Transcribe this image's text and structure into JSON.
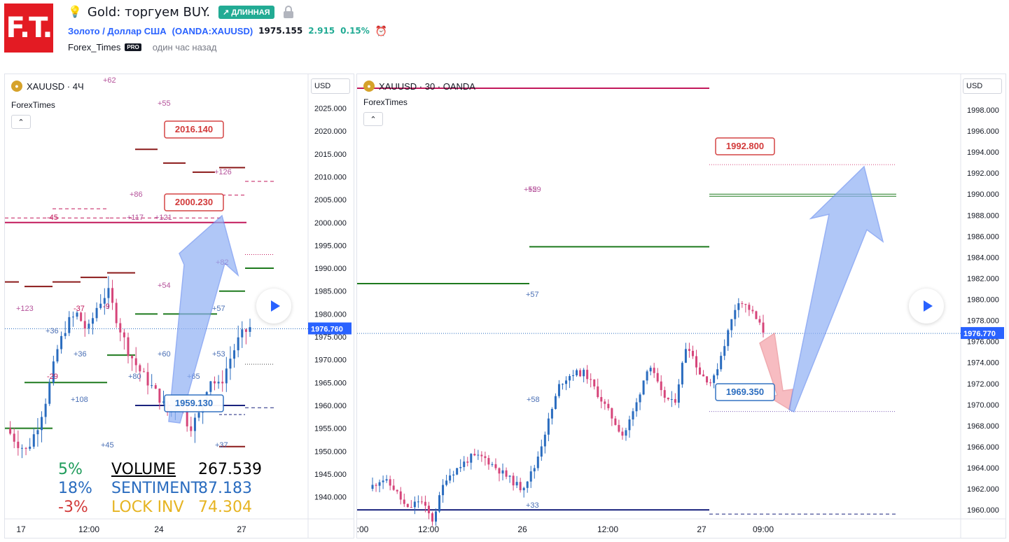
{
  "header": {
    "logo_text": "F.T.",
    "idea_title": "Gold: торгуем BUY.",
    "direction_badge": "↗ ДЛИННАЯ",
    "symbol_name": "Золото / Доллар США",
    "symbol_ticker": "(OANDA:XAUUSD)",
    "price": "1975.155",
    "change": "2.915",
    "change_pct": "0.15%",
    "author": "Forex_Times",
    "pro_badge": "PRO",
    "time_ago": "один час назад"
  },
  "left_chart": {
    "symbol": "XAUUSD · 4Ч",
    "indicator": "ForexTimes",
    "currency": "USD",
    "price_labels": [
      "2025.000",
      "2020.000",
      "2015.000",
      "2010.000",
      "2005.000",
      "2000.000",
      "1995.000",
      "1990.000",
      "1985.000",
      "1980.000",
      "1975.000",
      "1970.000",
      "1965.000",
      "1960.000",
      "1955.000",
      "1950.000",
      "1945.000",
      "1940.000"
    ],
    "current_price": "1976.760",
    "time_labels": [
      "17",
      "12:00",
      "24",
      "27"
    ],
    "callouts": [
      "2016.140",
      "2000.230",
      "1959.130"
    ],
    "annotations": [
      "+62",
      "+55",
      "+126",
      "+86",
      "+117",
      "+121",
      "-45",
      "+82",
      "+54",
      "+123",
      "-37",
      "-9",
      "+57",
      "+36",
      "+36",
      "+60",
      "+80",
      "-29",
      "+65",
      "+53",
      "+108",
      "+37",
      "+45"
    ],
    "stats": {
      "volume_pct": "5%",
      "volume_label": "VOLUME",
      "volume_value": "267.539",
      "sentiment_pct": "18%",
      "sentiment_label": "SENTIMENT",
      "sentiment_value": "87.183",
      "lock_pct": "-3%",
      "lock_label": "LOCK INV",
      "lock_value": "74.304"
    }
  },
  "right_chart": {
    "symbol": "XAUUSD · 30 · OANDA",
    "indicator": "ForexTimes",
    "currency": "USD",
    "price_labels": [
      "1998.000",
      "1996.000",
      "1994.000",
      "1992.000",
      "1990.000",
      "1988.000",
      "1986.000",
      "1984.000",
      "1982.000",
      "1980.000",
      "1978.000",
      "1976.000",
      "1974.000",
      "1972.000",
      "1970.000",
      "1968.000",
      "1966.000",
      "1964.000",
      "1962.000",
      "1960.000"
    ],
    "current_price": "1976.770",
    "time_labels": [
      ":00",
      "12:00",
      "26",
      "12:00",
      "27",
      "09:00"
    ],
    "callouts": [
      "1992.800",
      "1969.350"
    ],
    "annotations": [
      "+52",
      "+59",
      "+57",
      "+58",
      "+33"
    ]
  },
  "colors": {
    "bull": "#2a6cbf",
    "bear": "#d6457a",
    "accent": "#2962ff",
    "green": "#22ab94",
    "magenta": "#c2185b",
    "dark_green": "#1e7a1e",
    "navy": "#1a237e",
    "dark_red": "#8b1a1a"
  }
}
